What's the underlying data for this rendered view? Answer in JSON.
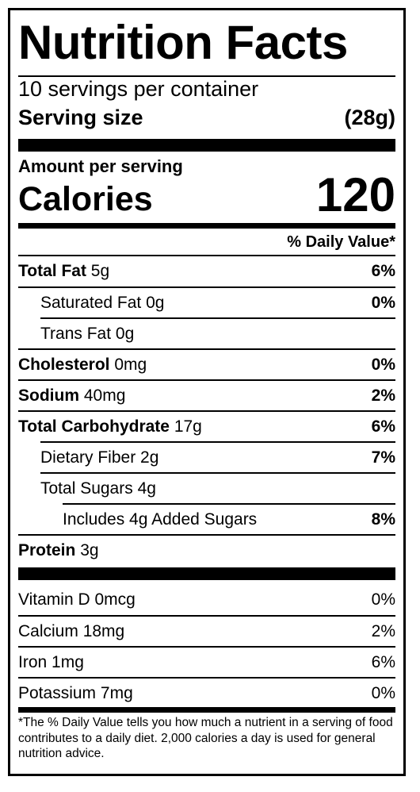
{
  "title": "Nutrition Facts",
  "servings_per_container": "10 servings per container",
  "serving_size": {
    "label": "Serving size",
    "value": "(28g)"
  },
  "amount_per_serving": "Amount per serving",
  "calories": {
    "label": "Calories",
    "value": "120"
  },
  "daily_value_header": "% Daily Value*",
  "nutrients": [
    {
      "name": "Total Fat",
      "amount": "5g",
      "dv": "6%"
    },
    {
      "name": "Saturated Fat",
      "amount": "0g",
      "dv": "0%"
    },
    {
      "name": "Trans Fat",
      "amount": "0g",
      "dv": ""
    },
    {
      "name": "Cholesterol",
      "amount": "0mg",
      "dv": "0%"
    },
    {
      "name": "Sodium",
      "amount": "40mg",
      "dv": "2%"
    },
    {
      "name": "Total Carbohydrate",
      "amount": "17g",
      "dv": "6%"
    },
    {
      "name": "Dietary Fiber",
      "amount": "2g",
      "dv": "7%"
    },
    {
      "name": "Total Sugars",
      "amount": "4g",
      "dv": ""
    },
    {
      "name": "Includes 4g Added Sugars",
      "amount": "",
      "dv": "8%"
    },
    {
      "name": "Protein",
      "amount": "3g",
      "dv": ""
    }
  ],
  "vitamins": [
    {
      "name": "Vitamin D",
      "amount": "0mcg",
      "dv": "0%"
    },
    {
      "name": "Calcium",
      "amount": "18mg",
      "dv": "2%"
    },
    {
      "name": "Iron",
      "amount": "1mg",
      "dv": "6%"
    },
    {
      "name": "Potassium",
      "amount": "7mg",
      "dv": "0%"
    }
  ],
  "footnote": "*The % Daily Value tells you how much a nutrient in a serving of food contributes to a daily diet. 2,000 calories a day is used for general nutrition advice."
}
